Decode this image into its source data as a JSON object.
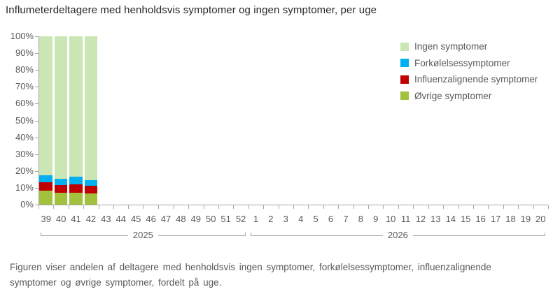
{
  "title": "Influmeterdeltagere med henholdsvis symptomer og ingen symptomer, per uge",
  "footer": {
    "text": "Figuren viser andelen af deltagere med henholdsvis ingen symptomer, forkølelsessymptomer, influenzalignende\nsymptomer og øvrige symptomer, fordelt på uge."
  },
  "colors": {
    "ingen": "#cae6b4",
    "forkolelse": "#00b0f0",
    "influenza": "#c00000",
    "ovrige": "#a3c13c",
    "axis": "#a6a6a6",
    "label_text": "#595959",
    "title_text": "#262626"
  },
  "legend": {
    "position": "top-right",
    "items": [
      {
        "label": "Ingen symptomer",
        "color": "#cae6b4"
      },
      {
        "label": "Forkølelsessymptomer",
        "color": "#00b0f0"
      },
      {
        "label": "Influenzalignende symptomer",
        "color": "#c00000"
      },
      {
        "label": "Øvrige symptomer",
        "color": "#a3c13c"
      }
    ]
  },
  "chart_data": {
    "type": "bar",
    "stacked": true,
    "stacked_unit": "percent",
    "title": "Influmeterdeltagere med henholdsvis symptomer og ingen symptomer, per uge",
    "xlabel": "",
    "ylabel": "",
    "ylim": [
      0,
      100
    ],
    "grid": false,
    "y_ticks": [
      "0%",
      "10%",
      "20%",
      "30%",
      "40%",
      "50%",
      "60%",
      "70%",
      "80%",
      "90%",
      "100%"
    ],
    "categories": [
      "39",
      "40",
      "41",
      "42",
      "43",
      "44",
      "45",
      "46",
      "47",
      "48",
      "49",
      "50",
      "51",
      "52",
      "1",
      "2",
      "3",
      "4",
      "5",
      "6",
      "7",
      "8",
      "9",
      "10",
      "11",
      "12",
      "13",
      "14",
      "15",
      "16",
      "17",
      "18",
      "19",
      "20"
    ],
    "category_years": [
      {
        "label": "2025",
        "span": 14
      },
      {
        "label": "2026",
        "span": 20
      }
    ],
    "weeks_with_data": [
      "39",
      "40",
      "41",
      "42"
    ],
    "series": [
      {
        "name": "Øvrige symptomer",
        "color": "#a3c13c",
        "values": [
          8.3,
          6.9,
          7.2,
          6.5
        ]
      },
      {
        "name": "Influenzalignende symptomer",
        "color": "#c00000",
        "values": [
          5.1,
          4.8,
          4.8,
          4.8
        ]
      },
      {
        "name": "Forkølelsessymptomer",
        "color": "#00b0f0",
        "values": [
          4.2,
          3.6,
          4.6,
          3.4
        ]
      },
      {
        "name": "Ingen symptomer",
        "color": "#cae6b4",
        "values": [
          82.4,
          84.7,
          83.4,
          85.3
        ]
      }
    ]
  }
}
